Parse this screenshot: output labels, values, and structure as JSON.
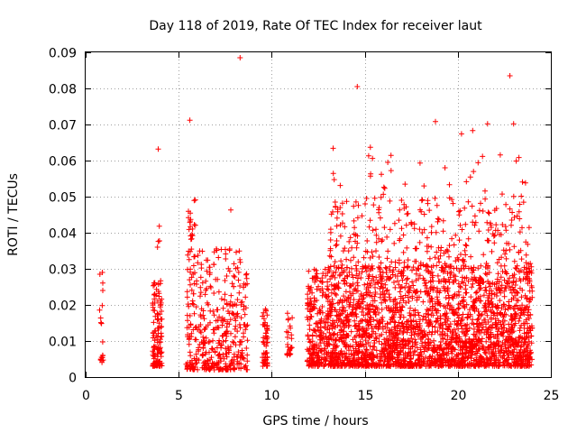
{
  "chart_data": {
    "type": "scatter",
    "title": "Day 118 of 2019, Rate Of TEC Index for receiver laut",
    "xlabel": "GPS time / hours",
    "ylabel": "ROTI / TECUs",
    "xlim": [
      0,
      25
    ],
    "ylim": [
      0,
      0.09
    ],
    "xticks": [
      0,
      5,
      10,
      15,
      20,
      25
    ],
    "xtick_labels": [
      "0",
      "5",
      "10",
      "15",
      "20",
      "25"
    ],
    "yticks": [
      0,
      0.01,
      0.02,
      0.03,
      0.04,
      0.05,
      0.06,
      0.07,
      0.08,
      0.09
    ],
    "ytick_labels": [
      "0",
      "0.01",
      "0.02",
      "0.03",
      "0.04",
      "0.05",
      "0.06",
      "0.07",
      "0.08",
      "0.09"
    ],
    "grid": true,
    "marker": "+",
    "color": "#ff0000",
    "notable_points": [
      {
        "x": 8.3,
        "y": 0.0885
      },
      {
        "x": 22.8,
        "y": 0.0835
      },
      {
        "x": 14.6,
        "y": 0.0805
      },
      {
        "x": 5.6,
        "y": 0.0712
      },
      {
        "x": 18.8,
        "y": 0.0708
      },
      {
        "x": 21.6,
        "y": 0.0702
      },
      {
        "x": 23.0,
        "y": 0.0702
      },
      {
        "x": 20.2,
        "y": 0.0674
      },
      {
        "x": 20.8,
        "y": 0.0683
      },
      {
        "x": 3.9,
        "y": 0.0632
      },
      {
        "x": 13.3,
        "y": 0.0634
      },
      {
        "x": 15.3,
        "y": 0.0637
      },
      {
        "x": 7.8,
        "y": 0.0463
      },
      {
        "x": 0.9,
        "y": 0.029
      }
    ],
    "clusters": [
      {
        "x_range": [
          0.75,
          0.95
        ],
        "y_range": [
          0.004,
          0.029
        ],
        "count": 18
      },
      {
        "x_range": [
          3.6,
          4.1
        ],
        "y_range": [
          0.003,
          0.027
        ],
        "count": 130
      },
      {
        "x_range": [
          3.85,
          4.0
        ],
        "y_range": [
          0.036,
          0.042
        ],
        "count": 4
      },
      {
        "x_range": [
          5.4,
          8.7
        ],
        "y_range": [
          0.002,
          0.036
        ],
        "count": 420
      },
      {
        "x_range": [
          5.5,
          5.9
        ],
        "y_range": [
          0.038,
          0.053
        ],
        "count": 18
      },
      {
        "x_range": [
          9.5,
          9.8
        ],
        "y_range": [
          0.003,
          0.019
        ],
        "count": 55
      },
      {
        "x_range": [
          10.8,
          11.1
        ],
        "y_range": [
          0.006,
          0.018
        ],
        "count": 25
      },
      {
        "x_range": [
          11.9,
          24.0
        ],
        "y_range": [
          0.003,
          0.03
        ],
        "count": 2600
      },
      {
        "x_range": [
          13.0,
          24.0
        ],
        "y_range": [
          0.03,
          0.048
        ],
        "count": 320
      },
      {
        "x_range": [
          13.2,
          23.8
        ],
        "y_range": [
          0.048,
          0.062
        ],
        "count": 55
      }
    ]
  }
}
